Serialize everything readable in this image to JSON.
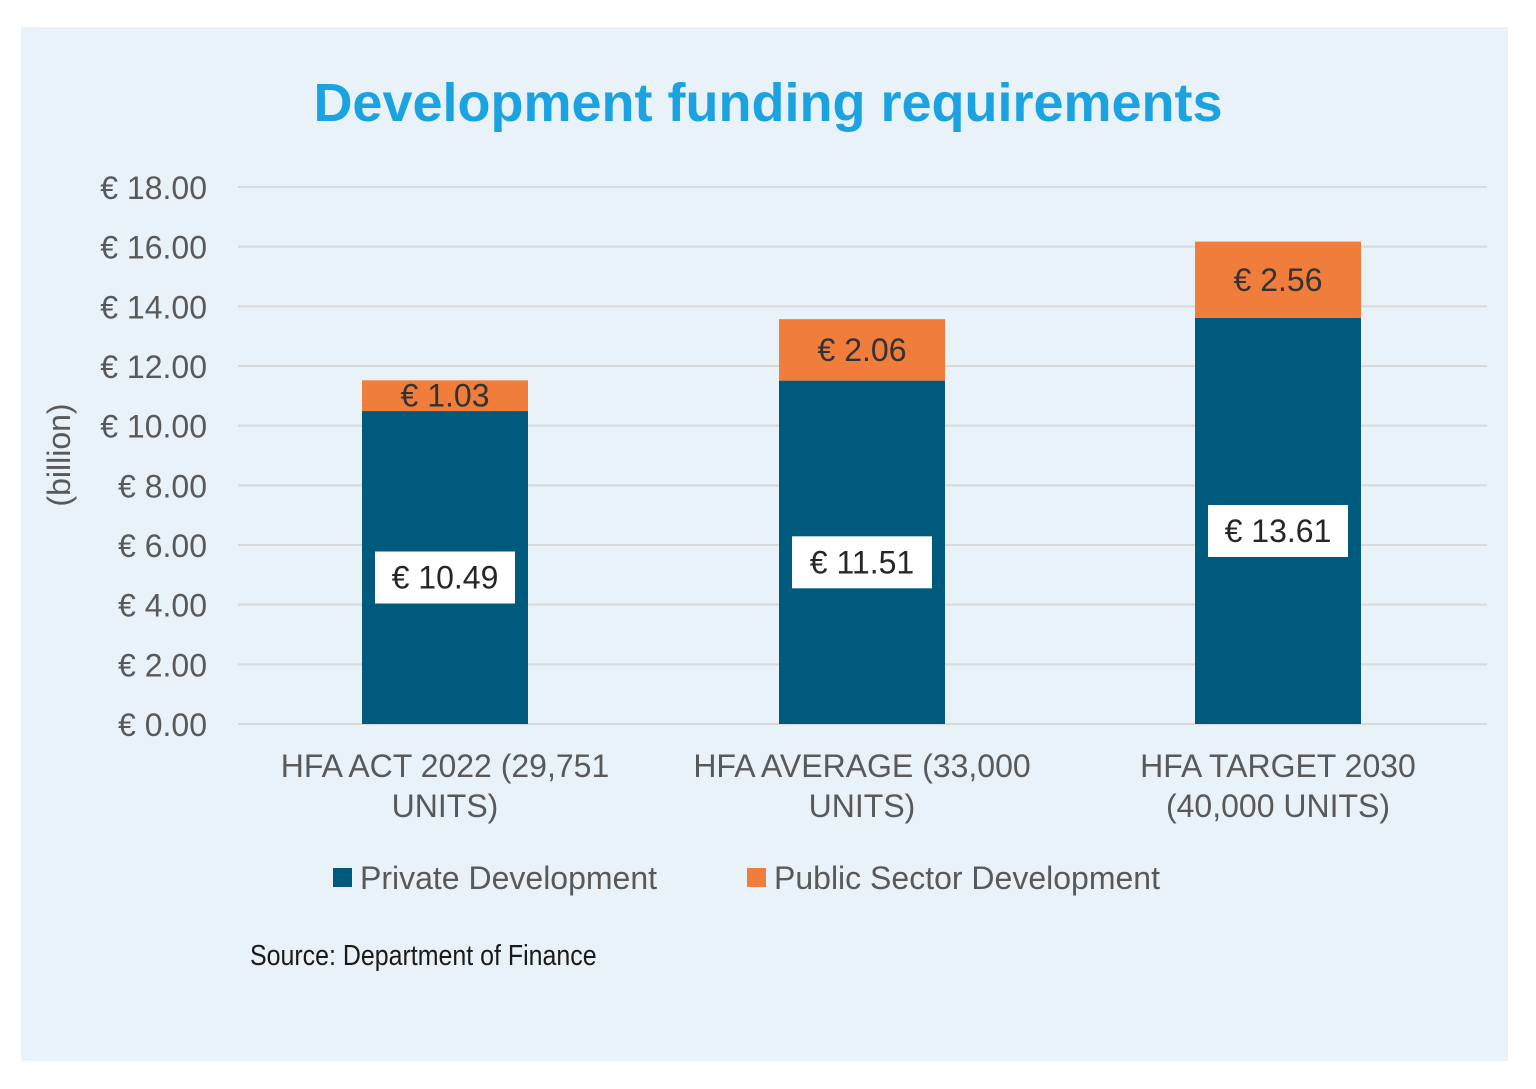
{
  "chart_data": {
    "type": "bar",
    "stacked": true,
    "title": "Development funding requirements",
    "ylabel": "(billion)",
    "ylim": [
      0,
      18
    ],
    "yticks": [
      "€ 0.00",
      "€ 2.00",
      "€ 4.00",
      "€ 6.00",
      "€ 8.00",
      "€ 10.00",
      "€ 12.00",
      "€ 14.00",
      "€ 16.00",
      "€ 18.00"
    ],
    "ytick_values": [
      0,
      2,
      4,
      6,
      8,
      10,
      12,
      14,
      16,
      18
    ],
    "categories": [
      [
        "HFA ACT 2022 (29,751",
        "UNITS)"
      ],
      [
        "HFA AVERAGE (33,000",
        "UNITS)"
      ],
      [
        "HFA TARGET 2030",
        "(40,000 UNITS)"
      ]
    ],
    "series": [
      {
        "name": "Private Development",
        "color": "#005a7d",
        "values": [
          10.49,
          11.51,
          13.61
        ],
        "labels": [
          "€ 10.49",
          "€ 11.51",
          "€ 13.61"
        ]
      },
      {
        "name": "Public Sector Development",
        "color": "#f07d3c",
        "values": [
          1.03,
          2.06,
          2.56
        ],
        "labels": [
          "€ 1.03",
          "€ 2.06",
          "€ 2.56"
        ]
      }
    ],
    "grid": true,
    "legend_position": "bottom"
  },
  "source": "Source: Department of Finance",
  "colors": {
    "background": "#e9f2f8",
    "title": "#1aa3e0",
    "grid": "#d9d9d9",
    "axis_text": "#595959"
  }
}
